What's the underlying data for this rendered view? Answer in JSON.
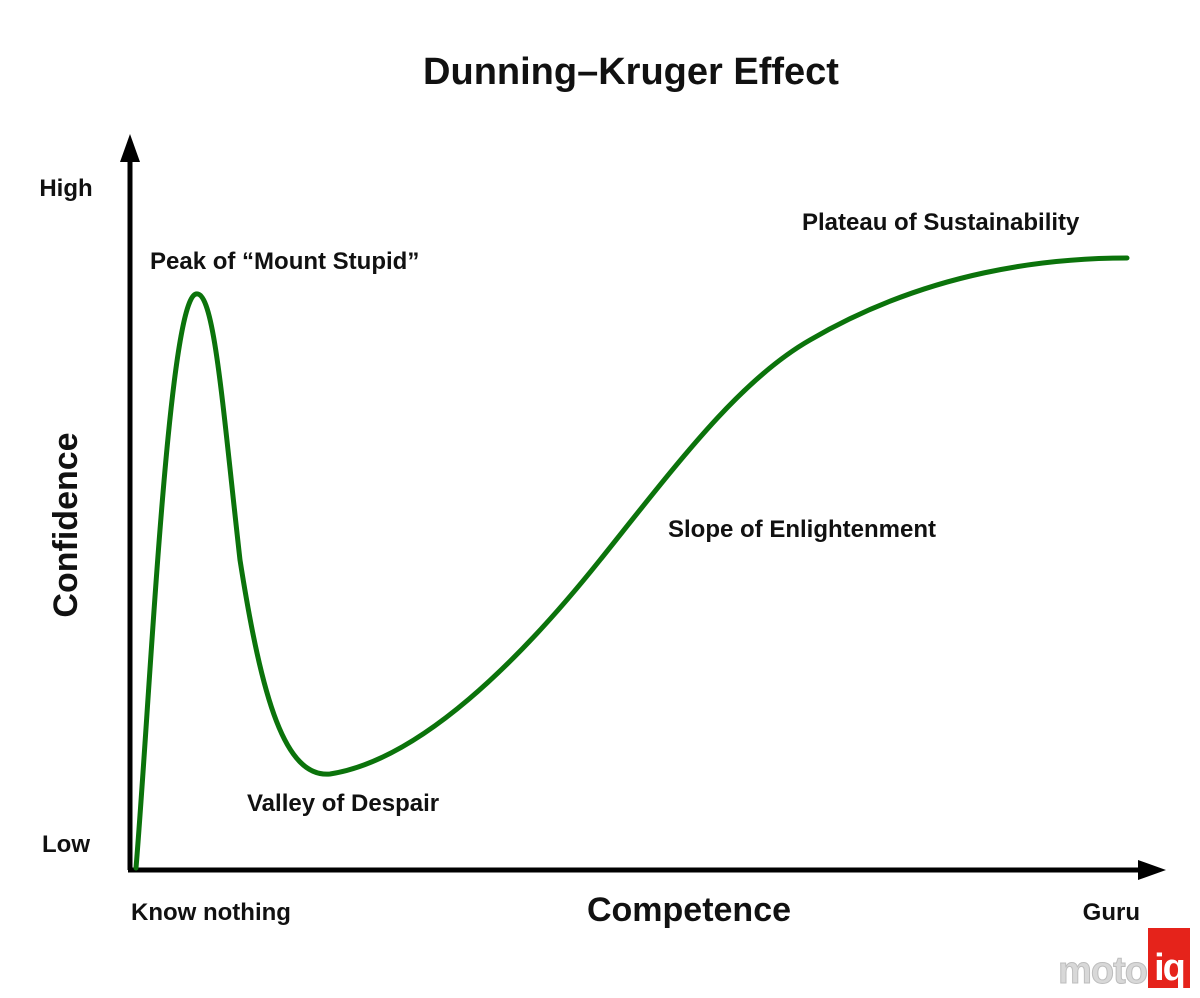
{
  "title": "Dunning–Kruger Effect",
  "y_axis": {
    "label": "Confidence",
    "high_label": "High",
    "low_label": "Low"
  },
  "x_axis": {
    "label": "Competence",
    "start_label": "Know nothing",
    "end_label": "Guru"
  },
  "annotations": {
    "peak": "Peak of “Mount Stupid”",
    "valley": "Valley of Despair",
    "slope": "Slope of Enlightenment",
    "plateau": "Plateau of Sustainability"
  },
  "curve": {
    "color": "#0b730b",
    "x_range": [
      0,
      100
    ],
    "y_range": [
      0,
      100
    ]
  },
  "axes_color": "#000000",
  "watermark": {
    "text_part": "moto",
    "badge_part": "iq",
    "badge_color": "#e5231b",
    "text_color": "#d8d8d8"
  }
}
